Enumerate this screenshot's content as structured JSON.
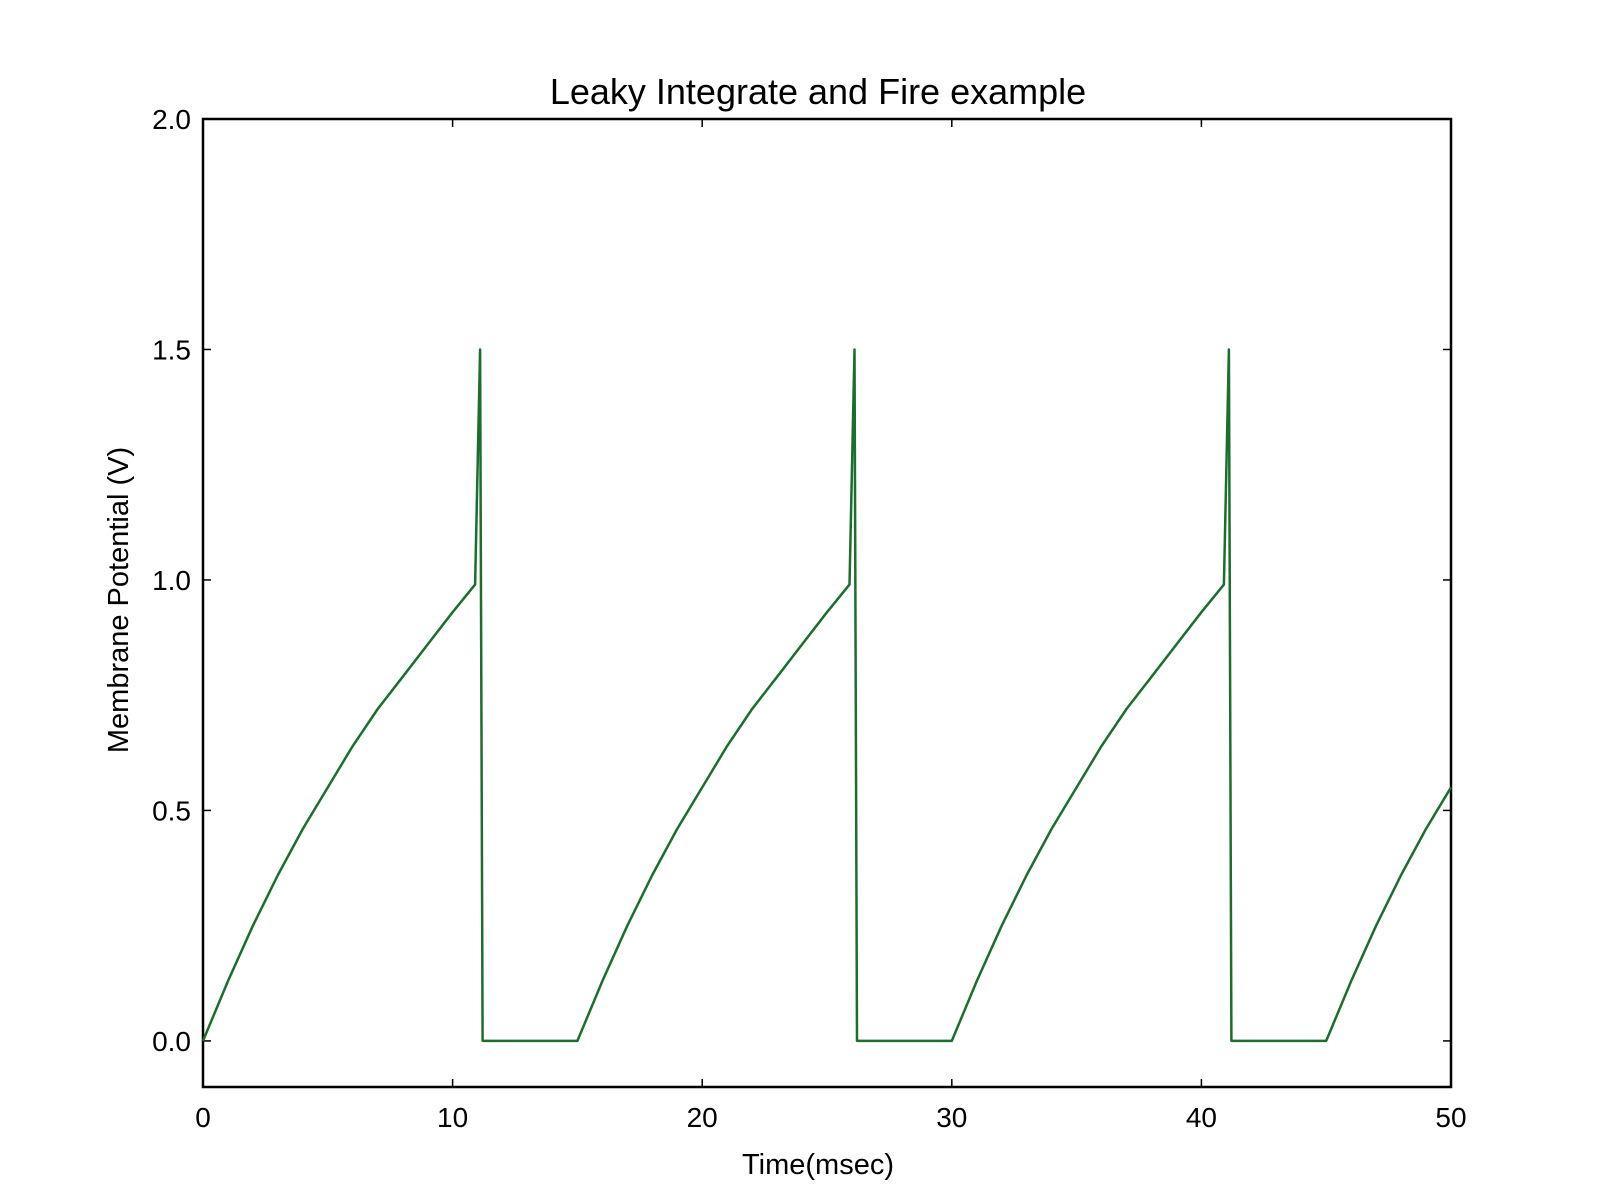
{
  "chart_data": {
    "type": "line",
    "title": "Leaky Integrate and Fire example",
    "xlabel": "Time(msec)",
    "ylabel": "Membrane Potential (V)",
    "xlim": [
      0,
      50
    ],
    "ylim": [
      -0.1,
      2.0
    ],
    "xticks": [
      "0",
      "10",
      "20",
      "30",
      "40",
      "50"
    ],
    "yticks": [
      "0.0",
      "0.5",
      "1.0",
      "1.5",
      "2.0"
    ],
    "grid": false,
    "series": [
      {
        "color": "#1b6e2c",
        "x": [
          0,
          1,
          2,
          3,
          4,
          5,
          6,
          7,
          8,
          9,
          10,
          10.9,
          11.1,
          11.2,
          15,
          16,
          17,
          18,
          19,
          20,
          21,
          22,
          23,
          24,
          25,
          25.9,
          26.1,
          26.2,
          30,
          31,
          32,
          33,
          34,
          35,
          36,
          37,
          38,
          39,
          40,
          40.9,
          41.1,
          41.2,
          45,
          46,
          47,
          48,
          49,
          50
        ],
        "y": [
          0.0,
          0.13,
          0.25,
          0.36,
          0.46,
          0.55,
          0.64,
          0.72,
          0.79,
          0.86,
          0.93,
          0.99,
          1.5,
          0.0,
          0.0,
          0.13,
          0.25,
          0.36,
          0.46,
          0.55,
          0.64,
          0.72,
          0.79,
          0.86,
          0.93,
          0.99,
          1.5,
          0.0,
          0.0,
          0.13,
          0.25,
          0.36,
          0.46,
          0.55,
          0.64,
          0.72,
          0.79,
          0.86,
          0.93,
          0.99,
          1.5,
          0.0,
          0.0,
          0.13,
          0.25,
          0.36,
          0.46,
          0.55
        ]
      }
    ]
  }
}
